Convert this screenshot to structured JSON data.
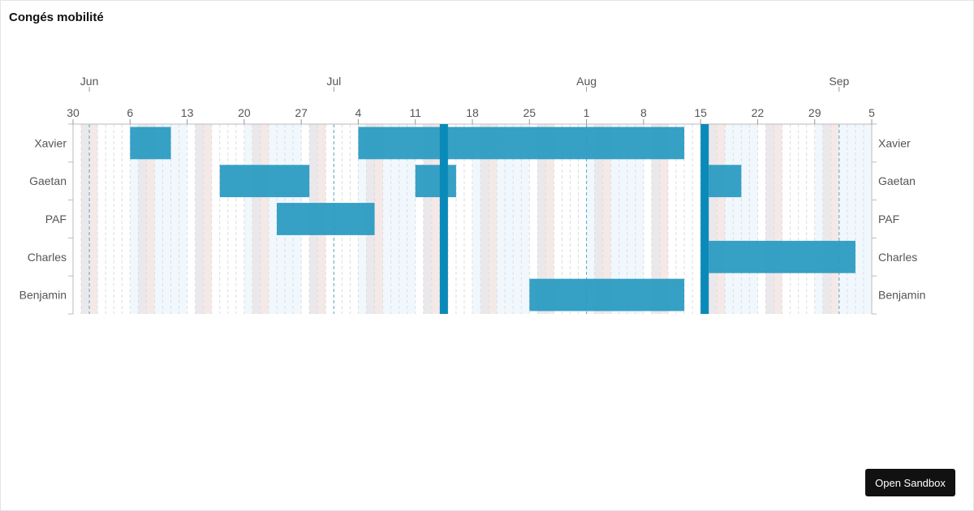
{
  "page": {
    "title": "Congés mobilité"
  },
  "sandbox": {
    "label": "Open Sandbox"
  },
  "chart_data": {
    "type": "gantt",
    "title": "Congés mobilité",
    "rows": [
      "Xavier",
      "Gaetan",
      "PAF",
      "Charles",
      "Benjamin"
    ],
    "x_range": [
      "2025-05-30",
      "2025-09-05"
    ],
    "month_ticks": [
      {
        "label": "Jun",
        "date": "2025-06-01"
      },
      {
        "label": "Jul",
        "date": "2025-07-01"
      },
      {
        "label": "Aug",
        "date": "2025-08-01"
      },
      {
        "label": "Sep",
        "date": "2025-09-01"
      }
    ],
    "week_ticks": [
      {
        "label": "30",
        "date": "2025-05-30"
      },
      {
        "label": "6",
        "date": "2025-06-06"
      },
      {
        "label": "13",
        "date": "2025-06-13"
      },
      {
        "label": "20",
        "date": "2025-06-20"
      },
      {
        "label": "27",
        "date": "2025-06-27"
      },
      {
        "label": "4",
        "date": "2025-07-04"
      },
      {
        "label": "11",
        "date": "2025-07-11"
      },
      {
        "label": "18",
        "date": "2025-07-18"
      },
      {
        "label": "25",
        "date": "2025-07-25"
      },
      {
        "label": "1",
        "date": "2025-08-01"
      },
      {
        "label": "8",
        "date": "2025-08-08"
      },
      {
        "label": "15",
        "date": "2025-08-15"
      },
      {
        "label": "22",
        "date": "2025-08-22"
      },
      {
        "label": "29",
        "date": "2025-08-29"
      },
      {
        "label": "5",
        "date": "2025-09-05"
      }
    ],
    "bars": [
      {
        "row": "Xavier",
        "start": "2025-06-06",
        "end": "2025-06-11"
      },
      {
        "row": "Xavier",
        "start": "2025-07-04",
        "end": "2025-08-13"
      },
      {
        "row": "Gaetan",
        "start": "2025-06-17",
        "end": "2025-06-28"
      },
      {
        "row": "Gaetan",
        "start": "2025-07-11",
        "end": "2025-07-16"
      },
      {
        "row": "Gaetan",
        "start": "2025-08-16",
        "end": "2025-08-20"
      },
      {
        "row": "PAF",
        "start": "2025-06-24",
        "end": "2025-07-06"
      },
      {
        "row": "Charles",
        "start": "2025-08-16",
        "end": "2025-09-03"
      },
      {
        "row": "Benjamin",
        "start": "2025-07-25",
        "end": "2025-08-13"
      }
    ],
    "holidays": [
      "2025-07-14",
      "2025-08-15"
    ],
    "colors": {
      "bar": "#2b9bc2",
      "holiday": "#0a8ab8",
      "sunday_band": "#f4e9e7",
      "saturday_band": "#ebe8ec",
      "week_band": "#eef6fd",
      "gridline": "#dddddd",
      "month_line": "#5aa9c9"
    }
  }
}
